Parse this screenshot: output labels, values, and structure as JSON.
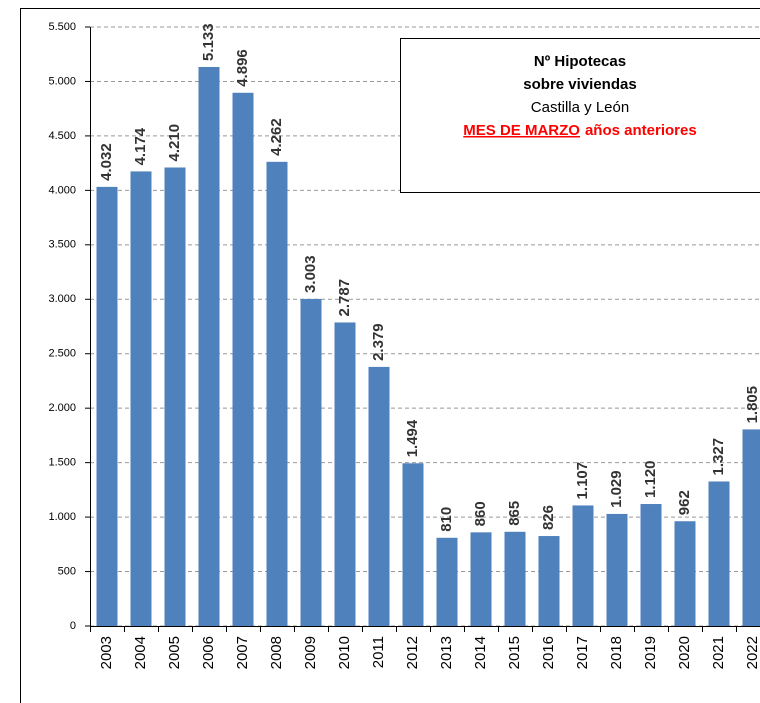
{
  "chart_data": {
    "type": "bar",
    "title": [
      "Nº Hipotecas",
      "sobre viviendas"
    ],
    "subtitle": "Castilla y León",
    "annotation": [
      "MES DE MARZO",
      "años anteriores"
    ],
    "categories": [
      "2003",
      "2004",
      "2005",
      "2006",
      "2007",
      "2008",
      "2009",
      "2010",
      "2011",
      "2012",
      "2013",
      "2014",
      "2015",
      "2016",
      "2017",
      "2018",
      "2019",
      "2020",
      "2021",
      "2022"
    ],
    "values": [
      4032,
      4174,
      4210,
      5133,
      4896,
      4262,
      3003,
      2787,
      2379,
      1494,
      810,
      860,
      865,
      826,
      1107,
      1029,
      1120,
      962,
      1327,
      1805
    ],
    "value_labels": [
      "4.032",
      "4.174",
      "4.210",
      "5.133",
      "4.896",
      "4.262",
      "3.003",
      "2.787",
      "2.379",
      "1.494",
      "810",
      "860",
      "865",
      "826",
      "1.107",
      "1.029",
      "1.120",
      "962",
      "1.327",
      "1.805"
    ],
    "color": "#4f81bd",
    "ylim": [
      0,
      5500
    ],
    "yticks": [
      0,
      500,
      {
        "value": 1000,
        "label": "1.000"
      },
      {
        "value": 1500,
        "label": "1.500"
      },
      {
        "value": 2000,
        "label": "2.000"
      },
      {
        "value": 2500,
        "label": "2.500"
      },
      {
        "value": 3000,
        "label": "3.000"
      },
      {
        "value": 3500,
        "label": "3.500"
      },
      {
        "value": 4000,
        "label": "4.000"
      },
      {
        "value": 4500,
        "label": "4.500"
      },
      {
        "value": 5000,
        "label": "5.000"
      },
      {
        "value": 5500,
        "label": "5.500"
      }
    ],
    "grid": true
  }
}
